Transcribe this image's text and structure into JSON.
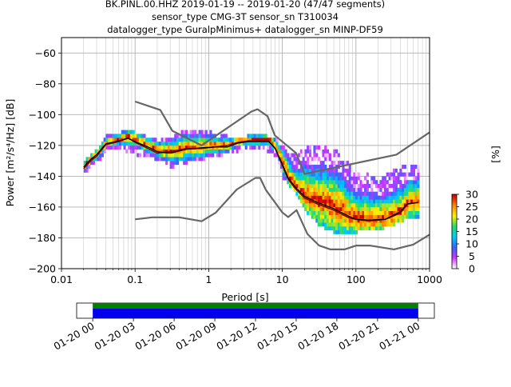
{
  "chart_data": {
    "type": "heatmap",
    "title_lines": [
      "BK.PINL.00.HHZ   2019-01-19 -- 2019-01-20  (47/47 segments)",
      "sensor_type CMG-3T sensor_sn T310034",
      "datalogger_type GuralpMinimus+ datalogger_sn MINP-DF59"
    ],
    "xlabel": "Period [s]",
    "ylabel": "Power [m²/s⁴/Hz] [dB]",
    "x_scale": "log",
    "xlim": [
      0.01,
      1000
    ],
    "ylim": [
      -200,
      -50
    ],
    "x_ticks": [
      {
        "value": 0.01,
        "label": "0.01"
      },
      {
        "value": 0.1,
        "label": "0.1"
      },
      {
        "value": 1,
        "label": "1"
      },
      {
        "value": 10,
        "label": "10"
      },
      {
        "value": 100,
        "label": "100"
      },
      {
        "value": 1000,
        "label": "1000"
      }
    ],
    "y_ticks": [
      {
        "value": -60,
        "label": "−60"
      },
      {
        "value": -80,
        "label": "−80"
      },
      {
        "value": -100,
        "label": "−100"
      },
      {
        "value": -120,
        "label": "−120"
      },
      {
        "value": -140,
        "label": "−140"
      },
      {
        "value": -160,
        "label": "−160"
      },
      {
        "value": -180,
        "label": "−180"
      },
      {
        "value": -200,
        "label": "−200"
      }
    ],
    "grid": true,
    "noise_models": [
      {
        "name": "NHNM",
        "color": "#666666",
        "points": [
          [
            0.1,
            -91.5
          ],
          [
            0.22,
            -97
          ],
          [
            0.32,
            -110.5
          ],
          [
            0.8,
            -120
          ],
          [
            3.8,
            -98
          ],
          [
            4.6,
            -96.5
          ],
          [
            6.3,
            -101
          ],
          [
            7.9,
            -113.5
          ],
          [
            15.4,
            -125
          ],
          [
            20,
            -138.5
          ],
          [
            354.8,
            -126
          ],
          [
            1000,
            -111.5
          ]
        ]
      },
      {
        "name": "NLNM",
        "color": "#666666",
        "points": [
          [
            0.1,
            -168
          ],
          [
            0.17,
            -166.7
          ],
          [
            0.4,
            -166.7
          ],
          [
            0.8,
            -169.2
          ],
          [
            1.24,
            -163.7
          ],
          [
            2.4,
            -148.6
          ],
          [
            4.3,
            -141.1
          ],
          [
            5,
            -141.1
          ],
          [
            6,
            -149
          ],
          [
            10,
            -163.5
          ],
          [
            12,
            -166.5
          ],
          [
            15.6,
            -162
          ],
          [
            21.9,
            -177.5
          ],
          [
            31.6,
            -185
          ],
          [
            45,
            -187.5
          ],
          [
            70,
            -187.5
          ],
          [
            101,
            -185
          ],
          [
            154,
            -185
          ],
          [
            328,
            -187.5
          ],
          [
            600,
            -184.4
          ],
          [
            1000,
            -177.9
          ]
        ]
      }
    ],
    "mean_curve": {
      "color": "#000000",
      "points": [
        [
          0.02,
          -134
        ],
        [
          0.025,
          -129
        ],
        [
          0.03,
          -126
        ],
        [
          0.04,
          -119
        ],
        [
          0.06,
          -117
        ],
        [
          0.08,
          -115.5
        ],
        [
          0.1,
          -117.5
        ],
        [
          0.15,
          -121
        ],
        [
          0.2,
          -124
        ],
        [
          0.3,
          -125
        ],
        [
          0.5,
          -122.5
        ],
        [
          0.8,
          -121.5
        ],
        [
          1.2,
          -121
        ],
        [
          1.8,
          -121
        ],
        [
          2.5,
          -118.5
        ],
        [
          3.5,
          -117.5
        ],
        [
          5,
          -117.5
        ],
        [
          6.5,
          -117.5
        ],
        [
          8,
          -122
        ],
        [
          10,
          -132
        ],
        [
          12,
          -141
        ],
        [
          15,
          -147
        ],
        [
          20,
          -153
        ],
        [
          30,
          -157
        ],
        [
          50,
          -161
        ],
        [
          80,
          -166
        ],
        [
          100,
          -168
        ],
        [
          150,
          -168.5
        ],
        [
          250,
          -168
        ],
        [
          400,
          -163
        ],
        [
          500,
          -158
        ],
        [
          700,
          -157
        ]
      ]
    },
    "mode_curve": {
      "color": "#8b0000",
      "points": [
        [
          0.02,
          -135
        ],
        [
          0.025,
          -130
        ],
        [
          0.03,
          -127
        ],
        [
          0.04,
          -119.5
        ],
        [
          0.06,
          -117.5
        ],
        [
          0.08,
          -115
        ],
        [
          0.1,
          -118
        ],
        [
          0.15,
          -122
        ],
        [
          0.2,
          -125
        ],
        [
          0.3,
          -124
        ],
        [
          0.5,
          -122
        ],
        [
          0.8,
          -122
        ],
        [
          1.2,
          -121
        ],
        [
          1.8,
          -120
        ],
        [
          2.5,
          -118
        ],
        [
          3.5,
          -117
        ],
        [
          5,
          -117
        ],
        [
          6.5,
          -117
        ],
        [
          8,
          -122
        ],
        [
          10,
          -133
        ],
        [
          12,
          -142
        ],
        [
          15,
          -148
        ],
        [
          20,
          -154
        ],
        [
          30,
          -158
        ],
        [
          50,
          -162
        ],
        [
          80,
          -167
        ],
        [
          100,
          -168
        ],
        [
          150,
          -169
        ],
        [
          250,
          -168
        ],
        [
          400,
          -164
        ],
        [
          500,
          -158
        ],
        [
          700,
          -157
        ]
      ]
    },
    "density_envelope": {
      "lower": [
        [
          0.02,
          -137
        ],
        [
          0.03,
          -130
        ],
        [
          0.04,
          -122
        ],
        [
          0.06,
          -121
        ],
        [
          0.1,
          -125
        ],
        [
          0.2,
          -128
        ],
        [
          0.3,
          -133
        ],
        [
          0.5,
          -130
        ],
        [
          1,
          -127
        ],
        [
          2,
          -124
        ],
        [
          5,
          -120
        ],
        [
          8,
          -126
        ],
        [
          10,
          -140
        ],
        [
          15,
          -150
        ],
        [
          20,
          -162
        ],
        [
          30,
          -170
        ],
        [
          50,
          -176
        ],
        [
          100,
          -175
        ],
        [
          200,
          -174
        ],
        [
          400,
          -168
        ],
        [
          700,
          -165
        ]
      ],
      "upper": [
        [
          0.02,
          -130
        ],
        [
          0.03,
          -124
        ],
        [
          0.04,
          -114
        ],
        [
          0.06,
          -113
        ],
        [
          0.08,
          -111
        ],
        [
          0.1,
          -113
        ],
        [
          0.2,
          -118
        ],
        [
          0.3,
          -115
        ],
        [
          0.5,
          -111
        ],
        [
          1,
          -112
        ],
        [
          2,
          -116
        ],
        [
          5,
          -114
        ],
        [
          8,
          -117
        ],
        [
          10,
          -122
        ],
        [
          15,
          -128
        ],
        [
          20,
          -121
        ],
        [
          50,
          -123
        ],
        [
          100,
          -138
        ],
        [
          200,
          -142
        ],
        [
          400,
          -135
        ],
        [
          700,
          -135
        ]
      ]
    },
    "colorbar": {
      "label": "[%]",
      "ticks": [
        {
          "value": 0,
          "label": "0"
        },
        {
          "value": 5,
          "label": "5"
        },
        {
          "value": 10,
          "label": "10"
        },
        {
          "value": 15,
          "label": "15"
        },
        {
          "value": 20,
          "label": "20"
        },
        {
          "value": 25,
          "label": "25"
        },
        {
          "value": 30,
          "label": "30"
        }
      ],
      "range": [
        0,
        30
      ],
      "stops": [
        "#ffffff",
        "#cc33ff",
        "#3366ff",
        "#00ccff",
        "#22dd66",
        "#ffee00",
        "#ff8800",
        "#cc0000"
      ]
    },
    "coverage": {
      "time_ticks": [
        "01-20 00",
        "01-20 03",
        "01-20 06",
        "01-20 09",
        "01-20 12",
        "01-20 15",
        "01-20 18",
        "01-20 21",
        "01-21 00"
      ],
      "data_color": "#0000ee",
      "gap_color": "#008000",
      "fraction_start": 0.045,
      "fraction_end": 0.955
    }
  }
}
